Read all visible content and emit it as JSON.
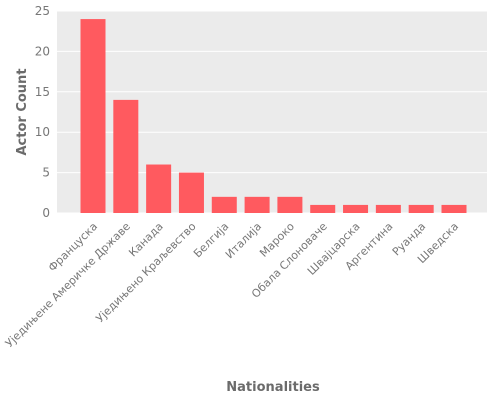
{
  "chart_data": {
    "type": "bar",
    "title": "",
    "xlabel": "Nationalities",
    "ylabel": "Actor Count",
    "categories": [
      "Француска",
      "Уједињене Америчке Државе",
      "Канада",
      "Уједињено Краљевство",
      "Белгија",
      "Италија",
      "Мароко",
      "Обала Слоноваче",
      "Швајцарска",
      "Аргентина",
      "Руанда",
      "Шведска"
    ],
    "values": [
      24,
      14,
      6,
      5,
      2,
      2,
      2,
      1,
      1,
      1,
      1,
      1
    ],
    "ylim": [
      0,
      25
    ],
    "yticks": [
      0,
      5,
      10,
      15,
      20,
      25
    ],
    "grid": true,
    "legend": "none"
  },
  "colors": {
    "bar": "#ff5a5f",
    "panel": "#ebebeb",
    "grid": "#ffffff",
    "text": "#777777",
    "axis_title": "#6b6b6b"
  }
}
